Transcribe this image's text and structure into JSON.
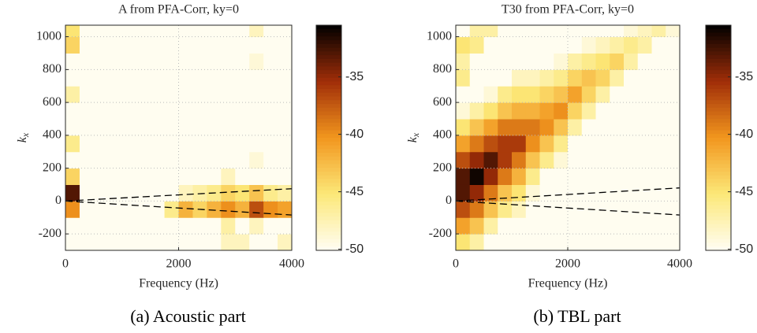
{
  "chart_data": [
    {
      "type": "heatmap",
      "title": "A from PFA-Corr, ky=0",
      "xlabel": "Frequency (Hz)",
      "ylabel": {
        "base": "k",
        "sub": "x"
      },
      "caption": "(a) Acoustic part",
      "colormap": "hot_r",
      "grid": true,
      "xlim": [
        0,
        4000
      ],
      "ylim": [
        -300,
        1070
      ],
      "xticks": [
        0,
        2000,
        4000
      ],
      "yticks": [
        -200,
        0,
        200,
        400,
        600,
        800,
        1000
      ],
      "clim": [
        -50.1,
        -30.5
      ],
      "cticks": [
        -35,
        -40,
        -45,
        -50
      ],
      "x_edges": [
        0,
        250,
        500,
        750,
        1000,
        1250,
        1500,
        1750,
        2000,
        2250,
        2500,
        2750,
        3000,
        3250,
        3500,
        3750,
        4000
      ],
      "y_edges": [
        -300,
        -200,
        -100,
        0,
        100,
        200,
        300,
        400,
        500,
        600,
        700,
        800,
        900,
        1000,
        1100
      ],
      "z": [
        [
          -50,
          -50,
          -50,
          -50,
          -50,
          -50,
          -50,
          -50,
          -50,
          -50,
          -50,
          -48,
          -48,
          -50,
          -50,
          -48
        ],
        [
          -50,
          -50,
          -50,
          -50,
          -50,
          -50,
          -50,
          -50,
          -50,
          -50,
          -50,
          -47,
          -50,
          -48,
          -50,
          -50
        ],
        [
          -40,
          -50,
          -50,
          -50,
          -50,
          -50,
          -50,
          -46,
          -42,
          -44,
          -42,
          -40,
          -42,
          -37,
          -40,
          -41
        ],
        [
          -33,
          -50,
          -50,
          -50,
          -50,
          -50,
          -50,
          -50,
          -48,
          -47,
          -46,
          -44,
          -45,
          -43,
          -46,
          -47
        ],
        [
          -44,
          -50,
          -50,
          -50,
          -50,
          -50,
          -50,
          -50,
          -50,
          -50,
          -50,
          -48,
          -50,
          -50,
          -50,
          -50
        ],
        [
          -50,
          -50,
          -50,
          -50,
          -50,
          -50,
          -50,
          -50,
          -50,
          -50,
          -50,
          -50,
          -50,
          -49,
          -50,
          -50
        ],
        [
          -46,
          -50,
          -50,
          -50,
          -50,
          -50,
          -50,
          -50,
          -50,
          -50,
          -50,
          -50,
          -50,
          -50,
          -50,
          -50
        ],
        [
          -50,
          -50,
          -50,
          -50,
          -50,
          -50,
          -50,
          -50,
          -50,
          -50,
          -50,
          -50,
          -50,
          -50,
          -50,
          -50
        ],
        [
          -50,
          -50,
          -50,
          -50,
          -50,
          -50,
          -50,
          -50,
          -50,
          -50,
          -50,
          -50,
          -50,
          -50,
          -50,
          -50
        ],
        [
          -47,
          -50,
          -50,
          -50,
          -50,
          -50,
          -50,
          -50,
          -50,
          -50,
          -50,
          -50,
          -50,
          -50,
          -50,
          -50
        ],
        [
          -50,
          -50,
          -50,
          -50,
          -50,
          -50,
          -50,
          -50,
          -50,
          -50,
          -50,
          -50,
          -50,
          -50,
          -50,
          -50
        ],
        [
          -50,
          -50,
          -50,
          -50,
          -50,
          -50,
          -50,
          -50,
          -50,
          -50,
          -50,
          -50,
          -50,
          -49,
          -50,
          -50
        ],
        [
          -44,
          -50,
          -50,
          -50,
          -50,
          -50,
          -50,
          -50,
          -50,
          -50,
          -50,
          -50,
          -50,
          -50,
          -50,
          -50
        ],
        [
          -45,
          -50,
          -50,
          -50,
          -50,
          -50,
          -50,
          -50,
          -50,
          -50,
          -50,
          -50,
          -50,
          -48,
          -50,
          -50
        ]
      ],
      "lines": [
        {
          "x": [
            0,
            4000
          ],
          "y": [
            0,
            75
          ]
        },
        {
          "x": [
            0,
            4000
          ],
          "y": [
            0,
            -85
          ]
        }
      ]
    },
    {
      "type": "heatmap",
      "title": "T30 from PFA-Corr, ky=0",
      "xlabel": "Frequency (Hz)",
      "ylabel": {
        "base": "k",
        "sub": "x"
      },
      "caption": "(b) TBL part",
      "colormap": "hot_r",
      "grid": true,
      "xlim": [
        0,
        4000
      ],
      "ylim": [
        -300,
        1070
      ],
      "xticks": [
        0,
        2000,
        4000
      ],
      "yticks": [
        -200,
        0,
        200,
        400,
        600,
        800,
        1000
      ],
      "clim": [
        -50.1,
        -30.5
      ],
      "cticks": [
        -35,
        -40,
        -45,
        -50
      ],
      "x_edges": [
        0,
        250,
        500,
        750,
        1000,
        1250,
        1500,
        1750,
        2000,
        2250,
        2500,
        2750,
        3000,
        3250,
        3500,
        3750,
        4000
      ],
      "y_edges": [
        -300,
        -200,
        -100,
        0,
        100,
        200,
        300,
        400,
        500,
        600,
        700,
        800,
        900,
        1000,
        1100
      ],
      "z": [
        [
          -45,
          -47,
          -50,
          -50,
          -50,
          -50,
          -50,
          -50,
          -50,
          -50,
          -50,
          -50,
          -50,
          -50,
          -50,
          -50
        ],
        [
          -41,
          -43,
          -47,
          -50,
          -50,
          -50,
          -50,
          -50,
          -50,
          -50,
          -50,
          -50,
          -50,
          -50,
          -50,
          -50
        ],
        [
          -37,
          -39,
          -43,
          -46,
          -48,
          -50,
          -50,
          -50,
          -50,
          -50,
          -50,
          -50,
          -50,
          -50,
          -50,
          -50
        ],
        [
          -33,
          -35,
          -39,
          -43,
          -45,
          -49,
          -50,
          -50,
          -50,
          -50,
          -50,
          -50,
          -50,
          -50,
          -50,
          -50
        ],
        [
          -33,
          -31,
          -35,
          -39,
          -42,
          -46,
          -50,
          -50,
          -50,
          -50,
          -50,
          -50,
          -50,
          -50,
          -50,
          -50
        ],
        [
          -37,
          -35,
          -33,
          -36,
          -39,
          -43,
          -46,
          -49,
          -50,
          -50,
          -50,
          -50,
          -50,
          -50,
          -50,
          -50
        ],
        [
          -41,
          -39,
          -37,
          -36,
          -36,
          -40,
          -43,
          -46,
          -50,
          -50,
          -50,
          -50,
          -50,
          -50,
          -50,
          -50
        ],
        [
          -45,
          -43,
          -41,
          -39,
          -39,
          -39,
          -40,
          -43,
          -47,
          -50,
          -50,
          -50,
          -50,
          -50,
          -50,
          -50
        ],
        [
          -49,
          -47,
          -45,
          -43,
          -42,
          -42,
          -41,
          -40,
          -44,
          -47,
          -50,
          -50,
          -50,
          -50,
          -50,
          -50
        ],
        [
          -50,
          -50,
          -49,
          -46,
          -45,
          -45,
          -44,
          -43,
          -41,
          -44,
          -47,
          -50,
          -50,
          -50,
          -50,
          -50
        ],
        [
          -46,
          -50,
          -50,
          -50,
          -48,
          -48,
          -47,
          -46,
          -44,
          -43,
          -44,
          -47,
          -50,
          -50,
          -50,
          -50
        ],
        [
          -47,
          -50,
          -50,
          -50,
          -50,
          -50,
          -50,
          -49,
          -47,
          -46,
          -45,
          -44,
          -47,
          -50,
          -50,
          -50
        ],
        [
          -45,
          -46,
          -50,
          -50,
          -50,
          -50,
          -50,
          -50,
          -50,
          -49,
          -48,
          -47,
          -46,
          -47,
          -50,
          -50
        ],
        [
          -50,
          -47,
          -47,
          -50,
          -50,
          -50,
          -50,
          -50,
          -50,
          -50,
          -50,
          -50,
          -49,
          -48,
          -47,
          -49
        ]
      ],
      "lines": [
        {
          "x": [
            0,
            4000
          ],
          "y": [
            0,
            80
          ]
        },
        {
          "x": [
            0,
            4000
          ],
          "y": [
            0,
            -85
          ]
        }
      ]
    }
  ]
}
